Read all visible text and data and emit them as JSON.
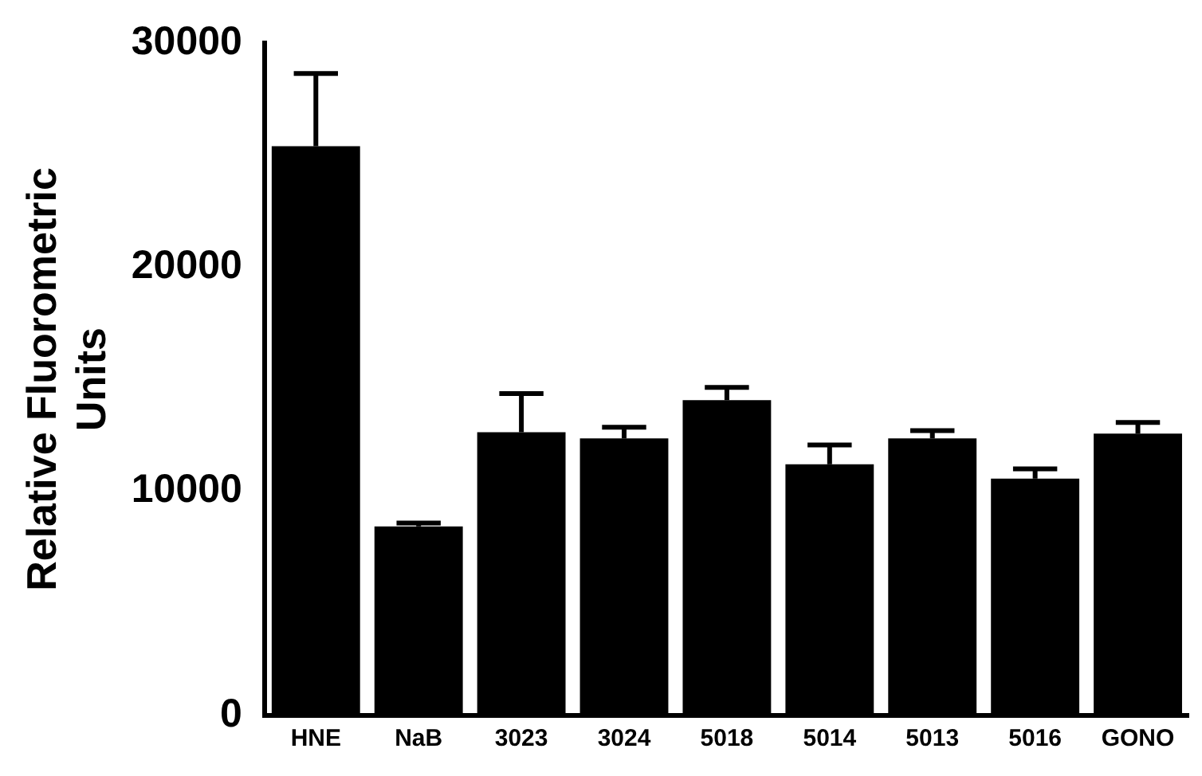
{
  "chart_data": {
    "type": "bar",
    "ylabel": "Relative Fluorometric Units",
    "categories": [
      "HNE",
      "NaB",
      "3023",
      "3024",
      "5018",
      "5014",
      "5013",
      "5016",
      "GONO"
    ],
    "values": [
      25400,
      8430,
      12640,
      12360,
      14070,
      11210,
      12360,
      10570,
      12570
    ],
    "errors": [
      [
        25400,
        28640
      ],
      [
        8430,
        8580
      ],
      [
        12640,
        14360
      ],
      [
        12360,
        12860
      ],
      [
        14070,
        14640
      ],
      [
        11210,
        12070
      ],
      [
        12360,
        12710
      ],
      [
        10570,
        11000
      ],
      [
        12570,
        13070
      ]
    ],
    "color": "#000000",
    "ylim": [
      0,
      30000
    ],
    "yticks": [
      0,
      10000,
      20000,
      30000
    ],
    "grid": false,
    "legend": false
  }
}
